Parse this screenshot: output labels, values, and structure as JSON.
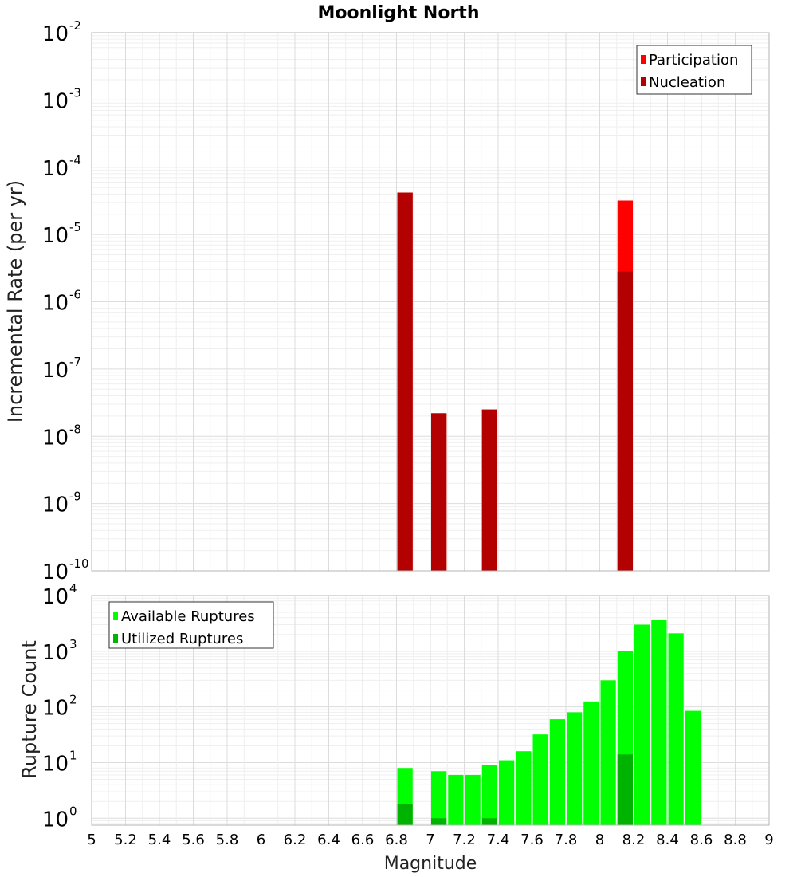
{
  "chart_data": [
    {
      "type": "bar",
      "title": "Moonlight North",
      "ylabel": "Incremental Rate (per yr)",
      "xlabel": "",
      "yscale": "log",
      "ylim_exponents": [
        -10,
        -2
      ],
      "xlim": [
        5,
        9
      ],
      "bar_width": 0.1,
      "legend": {
        "position": "top-right",
        "entries": [
          "Participation",
          "Nucleation"
        ]
      },
      "series": [
        {
          "name": "Participation",
          "color": "#ff0000",
          "x": [
            6.85,
            7.05,
            7.35,
            8.15
          ],
          "values": [
            4.2e-05,
            2.2e-08,
            2.5e-08,
            3.2e-05
          ]
        },
        {
          "name": "Nucleation",
          "color": "#b30000",
          "x": [
            6.85,
            7.05,
            7.35,
            8.15
          ],
          "values": [
            4.2e-05,
            2.2e-08,
            2.5e-08,
            2.8e-06
          ]
        }
      ]
    },
    {
      "type": "bar",
      "title": "",
      "ylabel": "Rupture Count",
      "xlabel": "Magnitude",
      "yscale": "log",
      "ylim_exponents": [
        0,
        4
      ],
      "ylim_min": 0.75,
      "xlim": [
        5,
        9
      ],
      "x_ticks": [
        "5",
        "5.2",
        "5.4",
        "5.6",
        "5.8",
        "6",
        "6.2",
        "6.4",
        "6.6",
        "6.8",
        "7",
        "7.2",
        "7.4",
        "7.6",
        "7.8",
        "8",
        "8.2",
        "8.4",
        "8.6",
        "8.8",
        "9"
      ],
      "bar_width": 0.1,
      "legend": {
        "position": "top-left",
        "entries": [
          "Available Ruptures",
          "Utilized Ruptures"
        ]
      },
      "series": [
        {
          "name": "Available Ruptures",
          "color": "#00ff00",
          "x": [
            6.85,
            7.05,
            7.15,
            7.25,
            7.35,
            7.45,
            7.55,
            7.65,
            7.75,
            7.85,
            7.95,
            8.05,
            8.15,
            8.25,
            8.35,
            8.45,
            8.55
          ],
          "values": [
            8,
            7,
            6,
            6,
            9,
            11,
            16,
            32,
            60,
            80,
            125,
            300,
            1000,
            3000,
            3600,
            2100,
            85
          ]
        },
        {
          "name": "Utilized Ruptures",
          "color": "#00b300",
          "x": [
            6.85,
            7.05,
            7.35,
            8.15
          ],
          "values": [
            1.8,
            1,
            1,
            14
          ]
        }
      ]
    }
  ]
}
